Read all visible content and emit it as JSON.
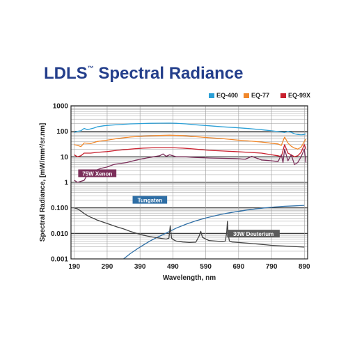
{
  "title_main": "LDLS",
  "title_tm": "™",
  "title_rest": " Spectral Radiance",
  "chart_data": {
    "type": "line",
    "xlabel": "Wavelength, nm",
    "ylabel": "Spectral Radiance, [mW/mm²/sr.nm]",
    "x_ticks": [
      190,
      290,
      390,
      490,
      590,
      690,
      790,
      890
    ],
    "y_tick_labels": [
      "1000",
      "100",
      "10",
      "1",
      "0.100",
      "0.010",
      "0.001"
    ],
    "y_tick_values": [
      1000,
      100,
      10,
      1,
      0.1,
      0.01,
      0.001
    ],
    "xlim": [
      180,
      900
    ],
    "ylim": [
      0.001,
      1000
    ],
    "y_scale": "log",
    "grid": true,
    "legend_position": "top-right",
    "series": [
      {
        "name": "EQ-400",
        "color": "#2a9fd6",
        "x": [
          190,
          200,
          210,
          220,
          230,
          240,
          250,
          260,
          280,
          300,
          330,
          360,
          390,
          420,
          450,
          480,
          500,
          530,
          560,
          600,
          640,
          680,
          720,
          760,
          790,
          810,
          820,
          830,
          840,
          850,
          860,
          870,
          880,
          890,
          895
        ],
        "y": [
          90,
          100,
          105,
          130,
          115,
          125,
          135,
          150,
          165,
          175,
          185,
          195,
          200,
          205,
          208,
          210,
          205,
          195,
          180,
          165,
          150,
          140,
          128,
          115,
          105,
          98,
          95,
          90,
          100,
          92,
          80,
          75,
          72,
          75,
          80
        ]
      },
      {
        "name": "EQ-77",
        "color": "#f0872a",
        "x": [
          190,
          200,
          210,
          220,
          240,
          260,
          290,
          320,
          360,
          400,
          440,
          480,
          520,
          560,
          600,
          640,
          680,
          720,
          760,
          790,
          810,
          820,
          830,
          840,
          850,
          860,
          870,
          880,
          890,
          895
        ],
        "y": [
          30,
          28,
          25,
          35,
          33,
          40,
          45,
          52,
          60,
          65,
          68,
          70,
          68,
          62,
          56,
          52,
          46,
          42,
          38,
          34,
          32,
          28,
          60,
          35,
          26,
          22,
          20,
          24,
          40,
          50
        ]
      },
      {
        "name": "EQ-99X",
        "color": "#c8202e",
        "x": [
          190,
          200,
          210,
          220,
          240,
          260,
          290,
          320,
          360,
          400,
          440,
          480,
          520,
          560,
          600,
          640,
          680,
          720,
          760,
          790,
          810,
          820,
          830,
          840,
          850,
          860,
          870,
          880,
          890,
          895
        ],
        "y": [
          12,
          10,
          11,
          14,
          14,
          15,
          16,
          18,
          20,
          22,
          23,
          23,
          22,
          20,
          18,
          17,
          16,
          15,
          14,
          12,
          11,
          10,
          30,
          14,
          12,
          10,
          11,
          15,
          30,
          20
        ]
      },
      {
        "name": "75W Xenon",
        "color": "#7b2f5a",
        "x": [
          190,
          200,
          210,
          220,
          230,
          250,
          270,
          290,
          310,
          330,
          350,
          370,
          390,
          410,
          430,
          450,
          460,
          470,
          480,
          500,
          530,
          560,
          600,
          640,
          680,
          710,
          730,
          760,
          790,
          810,
          820,
          825,
          830,
          840,
          850,
          860,
          870,
          880,
          890,
          895
        ],
        "y": [
          1.2,
          1.0,
          1.1,
          1.2,
          2.0,
          2.8,
          3.5,
          4.0,
          5.0,
          5.5,
          6.0,
          7.0,
          8.0,
          9.0,
          10.0,
          11.0,
          13.0,
          10.5,
          12.0,
          10.0,
          10.0,
          9.5,
          9.0,
          8.8,
          8.5,
          8.0,
          10.5,
          7.5,
          7.0,
          6.5,
          12.0,
          6.0,
          20.0,
          7.0,
          12.0,
          5.0,
          6.0,
          10.0,
          20.0,
          6.0
        ]
      },
      {
        "name": "Tungsten",
        "color": "#2f6fa6",
        "x": [
          340,
          360,
          380,
          400,
          420,
          440,
          460,
          480,
          500,
          530,
          560,
          590,
          620,
          650,
          680,
          710,
          740,
          770,
          800,
          830,
          860,
          890
        ],
        "y": [
          0.001,
          0.0016,
          0.0024,
          0.0035,
          0.005,
          0.0068,
          0.009,
          0.012,
          0.016,
          0.023,
          0.031,
          0.04,
          0.05,
          0.06,
          0.07,
          0.08,
          0.09,
          0.1,
          0.108,
          0.115,
          0.12,
          0.125
        ]
      },
      {
        "name": "30W Deuterium",
        "color": "#444444",
        "x": [
          190,
          200,
          210,
          220,
          230,
          240,
          250,
          260,
          280,
          300,
          320,
          340,
          360,
          380,
          400,
          420,
          440,
          460,
          470,
          478,
          482,
          486,
          490,
          500,
          520,
          540,
          560,
          570,
          575,
          580,
          590,
          600,
          620,
          640,
          650,
          654,
          656,
          658,
          662,
          670,
          690,
          710,
          730,
          750,
          770,
          790,
          810,
          830,
          850,
          870,
          890
        ],
        "y": [
          0.1,
          0.09,
          0.075,
          0.06,
          0.05,
          0.043,
          0.038,
          0.033,
          0.027,
          0.022,
          0.018,
          0.015,
          0.012,
          0.01,
          0.0085,
          0.0075,
          0.0068,
          0.0062,
          0.006,
          0.0065,
          0.02,
          0.0065,
          0.0058,
          0.005,
          0.0046,
          0.0044,
          0.0045,
          0.008,
          0.012,
          0.007,
          0.006,
          0.0052,
          0.005,
          0.0048,
          0.005,
          0.012,
          0.03,
          0.01,
          0.005,
          0.0046,
          0.0044,
          0.0042,
          0.004,
          0.0038,
          0.0036,
          0.0034,
          0.0033,
          0.0032,
          0.0031,
          0.003,
          0.0029
        ]
      }
    ],
    "annotations": [
      {
        "text": "75W Xenon",
        "x": 260,
        "y": 2.2,
        "color": "#7b2f5a"
      },
      {
        "text": "Tungsten",
        "x": 420,
        "y": 0.2,
        "color": "#2f6fa6"
      },
      {
        "text": "30W Deuterium",
        "x": 735,
        "y": 0.0095,
        "color": "#5a5a5a"
      }
    ]
  }
}
